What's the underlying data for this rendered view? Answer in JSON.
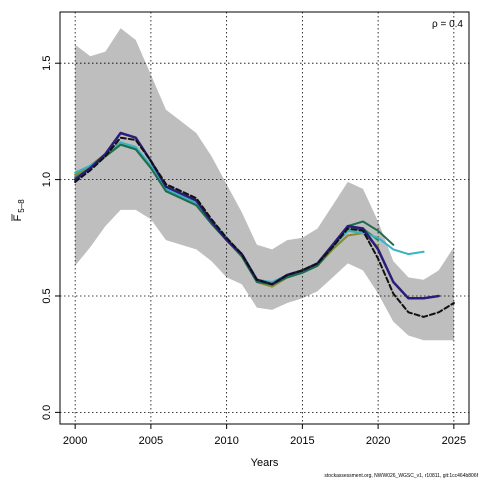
{
  "chart_data": {
    "type": "line",
    "xlabel": "Years",
    "ylabel_main": "F",
    "ylabel_sub": "5–8",
    "annotation": "ρ = 0.4",
    "footer": "stockassessment.org, NWW026_WGSC_v1, r10811, git:1cc464b806f",
    "xlim": [
      1999,
      2026
    ],
    "ylim": [
      -0.05,
      1.72
    ],
    "x_ticks": [
      2000,
      2005,
      2010,
      2015,
      2020,
      2025
    ],
    "y_ticks": [
      0.0,
      0.5,
      1.0,
      1.5
    ],
    "x_tick_labels": [
      "2000",
      "2005",
      "2010",
      "2015",
      "2020",
      "2025"
    ],
    "y_tick_labels": [
      "0.0",
      "0.5",
      "1.0",
      "1.5"
    ],
    "grid": true,
    "band": {
      "color": "#bebebe",
      "x": [
        2000,
        2001,
        2002,
        2003,
        2004,
        2005,
        2006,
        2007,
        2008,
        2009,
        2010,
        2011,
        2012,
        2013,
        2014,
        2015,
        2016,
        2017,
        2018,
        2019,
        2020,
        2021,
        2022,
        2023,
        2024,
        2025
      ],
      "upper": [
        1.58,
        1.53,
        1.55,
        1.65,
        1.6,
        1.45,
        1.3,
        1.25,
        1.2,
        1.1,
        0.98,
        0.86,
        0.72,
        0.7,
        0.74,
        0.75,
        0.79,
        0.89,
        0.99,
        0.96,
        0.82,
        0.65,
        0.58,
        0.57,
        0.61,
        0.71
      ],
      "lower": [
        0.63,
        0.71,
        0.8,
        0.87,
        0.87,
        0.83,
        0.74,
        0.72,
        0.7,
        0.65,
        0.58,
        0.55,
        0.45,
        0.44,
        0.47,
        0.49,
        0.52,
        0.58,
        0.64,
        0.61,
        0.51,
        0.39,
        0.33,
        0.31,
        0.31,
        0.31
      ]
    },
    "series": [
      {
        "color": "#8a8a2e",
        "dash": false,
        "width": 2,
        "x": [
          2000,
          2001,
          2002,
          2003,
          2004,
          2005,
          2006,
          2007,
          2008,
          2009,
          2010,
          2011,
          2012,
          2013,
          2014,
          2015,
          2016,
          2017,
          2018,
          2019,
          2020
        ],
        "values": [
          1.02,
          1.06,
          1.11,
          1.16,
          1.13,
          1.05,
          0.95,
          0.92,
          0.89,
          0.82,
          0.74,
          0.67,
          0.56,
          0.54,
          0.58,
          0.6,
          0.63,
          0.7,
          0.76,
          0.77,
          0.71
        ]
      },
      {
        "color": "#2a8c5a",
        "dash": false,
        "width": 2,
        "x": [
          2000,
          2001,
          2002,
          2003,
          2004,
          2005,
          2006,
          2007,
          2008,
          2009,
          2010,
          2011,
          2012,
          2013,
          2014,
          2015,
          2016,
          2017,
          2018,
          2019,
          2020
        ],
        "values": [
          1.01,
          1.05,
          1.1,
          1.15,
          1.13,
          1.05,
          0.95,
          0.92,
          0.89,
          0.81,
          0.74,
          0.67,
          0.56,
          0.55,
          0.58,
          0.6,
          0.63,
          0.71,
          0.78,
          0.79,
          0.74
        ]
      },
      {
        "color": "#38b2c4",
        "dash": false,
        "width": 2,
        "x": [
          2000,
          2001,
          2002,
          2003,
          2004,
          2005,
          2006,
          2007,
          2008,
          2009,
          2010,
          2011,
          2012,
          2013,
          2014,
          2015,
          2016,
          2017,
          2018,
          2019,
          2020,
          2021,
          2022,
          2023
        ],
        "values": [
          1.03,
          1.06,
          1.1,
          1.16,
          1.14,
          1.06,
          0.96,
          0.93,
          0.9,
          0.82,
          0.75,
          0.68,
          0.57,
          0.56,
          0.59,
          0.61,
          0.64,
          0.71,
          0.78,
          0.77,
          0.75,
          0.7,
          0.68,
          0.69
        ]
      },
      {
        "color": "#1e6e4e",
        "dash": false,
        "width": 2,
        "x": [
          2000,
          2001,
          2002,
          2003,
          2004,
          2005,
          2006,
          2007,
          2008,
          2009,
          2010,
          2011,
          2012,
          2013,
          2014,
          2015,
          2016,
          2017,
          2018,
          2019,
          2020,
          2021
        ],
        "values": [
          1.0,
          1.05,
          1.1,
          1.15,
          1.13,
          1.05,
          0.95,
          0.92,
          0.89,
          0.81,
          0.74,
          0.67,
          0.56,
          0.55,
          0.58,
          0.6,
          0.63,
          0.71,
          0.8,
          0.82,
          0.78,
          0.72
        ]
      },
      {
        "color": "#2b1c7a",
        "dash": false,
        "width": 2.5,
        "x": [
          2000,
          2001,
          2002,
          2003,
          2004,
          2005,
          2006,
          2007,
          2008,
          2009,
          2010,
          2011,
          2012,
          2013,
          2014,
          2015,
          2016,
          2017,
          2018,
          2019,
          2020,
          2021,
          2022,
          2023,
          2024
        ],
        "values": [
          1.0,
          1.05,
          1.11,
          1.2,
          1.18,
          1.08,
          0.97,
          0.94,
          0.91,
          0.82,
          0.74,
          0.68,
          0.57,
          0.55,
          0.59,
          0.61,
          0.64,
          0.72,
          0.8,
          0.79,
          0.7,
          0.56,
          0.49,
          0.49,
          0.5
        ]
      },
      {
        "color": "#111111",
        "dash": true,
        "width": 2,
        "x": [
          2000,
          2001,
          2002,
          2003,
          2004,
          2005,
          2006,
          2007,
          2008,
          2009,
          2010,
          2011,
          2012,
          2013,
          2014,
          2015,
          2016,
          2017,
          2018,
          2019,
          2020,
          2021,
          2022,
          2023,
          2024,
          2025
        ],
        "values": [
          0.99,
          1.04,
          1.1,
          1.18,
          1.17,
          1.08,
          0.98,
          0.95,
          0.92,
          0.83,
          0.75,
          0.68,
          0.57,
          0.55,
          0.59,
          0.61,
          0.64,
          0.71,
          0.79,
          0.78,
          0.66,
          0.51,
          0.43,
          0.41,
          0.43,
          0.47
        ]
      }
    ]
  }
}
